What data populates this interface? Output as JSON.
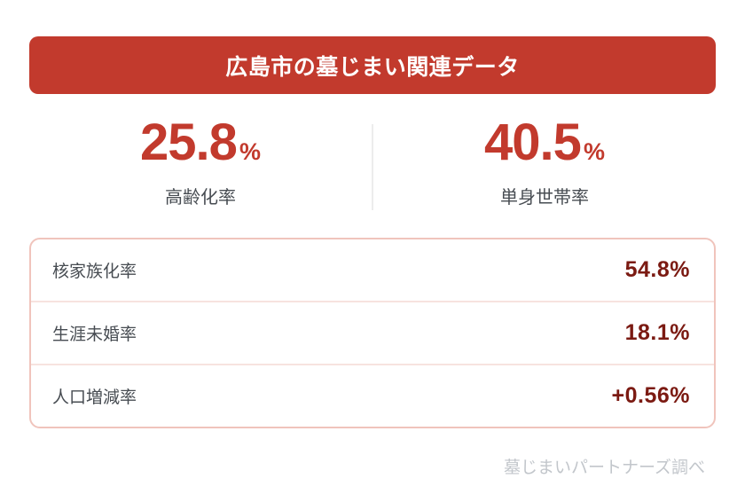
{
  "header": {
    "title": "広島市の墓じまい関連データ"
  },
  "stats": [
    {
      "value": "25.8",
      "unit": "%",
      "label": "高齢化率"
    },
    {
      "value": "40.5",
      "unit": "%",
      "label": "単身世帯率"
    }
  ],
  "table": {
    "rows": [
      {
        "label": "核家族化率",
        "value": "54.8%"
      },
      {
        "label": "生涯未婚率",
        "value": "18.1%"
      },
      {
        "label": "人口増減率",
        "value": "+0.56%"
      }
    ]
  },
  "footer": {
    "source": "墓じまいパートナーズ調べ"
  },
  "colors": {
    "accent_red": "#c23a2d",
    "value_maroon": "#7b1a12",
    "table_border_pink": "#f0c4bc",
    "row_separator_pink": "#f7e3df",
    "label_gray": "#474c52",
    "divider_gray": "#ececec",
    "footer_gray": "#c2c6cb"
  },
  "chart_data": {
    "type": "table",
    "title": "広島市の墓じまい関連データ",
    "highlight_stats": [
      {
        "label": "高齢化率",
        "value": 25.8,
        "unit": "%"
      },
      {
        "label": "単身世帯率",
        "value": 40.5,
        "unit": "%"
      }
    ],
    "rows": [
      {
        "label": "核家族化率",
        "value": 54.8,
        "unit": "%",
        "display": "54.8%"
      },
      {
        "label": "生涯未婚率",
        "value": 18.1,
        "unit": "%",
        "display": "18.1%"
      },
      {
        "label": "人口増減率",
        "value": 0.56,
        "unit": "%",
        "display": "+0.56%"
      }
    ],
    "source": "墓じまいパートナーズ調べ",
    "legend_position": "none",
    "grid": false
  }
}
